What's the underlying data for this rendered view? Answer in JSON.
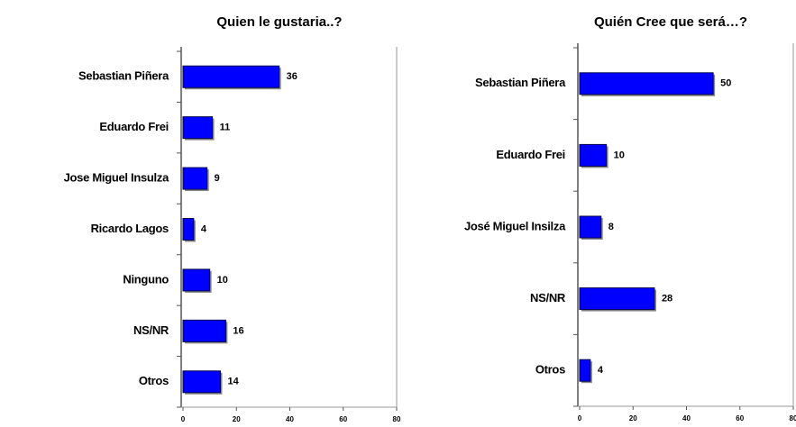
{
  "chart_data": [
    {
      "type": "bar",
      "orientation": "horizontal",
      "title": "Quien le gustaria..?",
      "categories": [
        "Sebastian Piñera",
        "Eduardo Frei",
        "Jose Miguel Insulza",
        "Ricardo Lagos",
        "Ninguno",
        "NS/NR",
        "Otros"
      ],
      "values": [
        36,
        11,
        9,
        4,
        10,
        16,
        14
      ],
      "color": "#0000ff",
      "xlim": [
        0,
        80
      ],
      "xticks": [
        0,
        20,
        40,
        60,
        80
      ]
    },
    {
      "type": "bar",
      "orientation": "horizontal",
      "title": "Quién Cree que será…?",
      "categories": [
        "Sebastian Piñera",
        "Eduardo Frei",
        "José Miguel Insilza",
        "NS/NR",
        "Otros"
      ],
      "values": [
        50,
        10,
        8,
        28,
        4
      ],
      "color": "#0000ff",
      "xlim": [
        0,
        80
      ],
      "xticks": [
        0,
        20,
        40,
        60,
        80
      ]
    }
  ]
}
